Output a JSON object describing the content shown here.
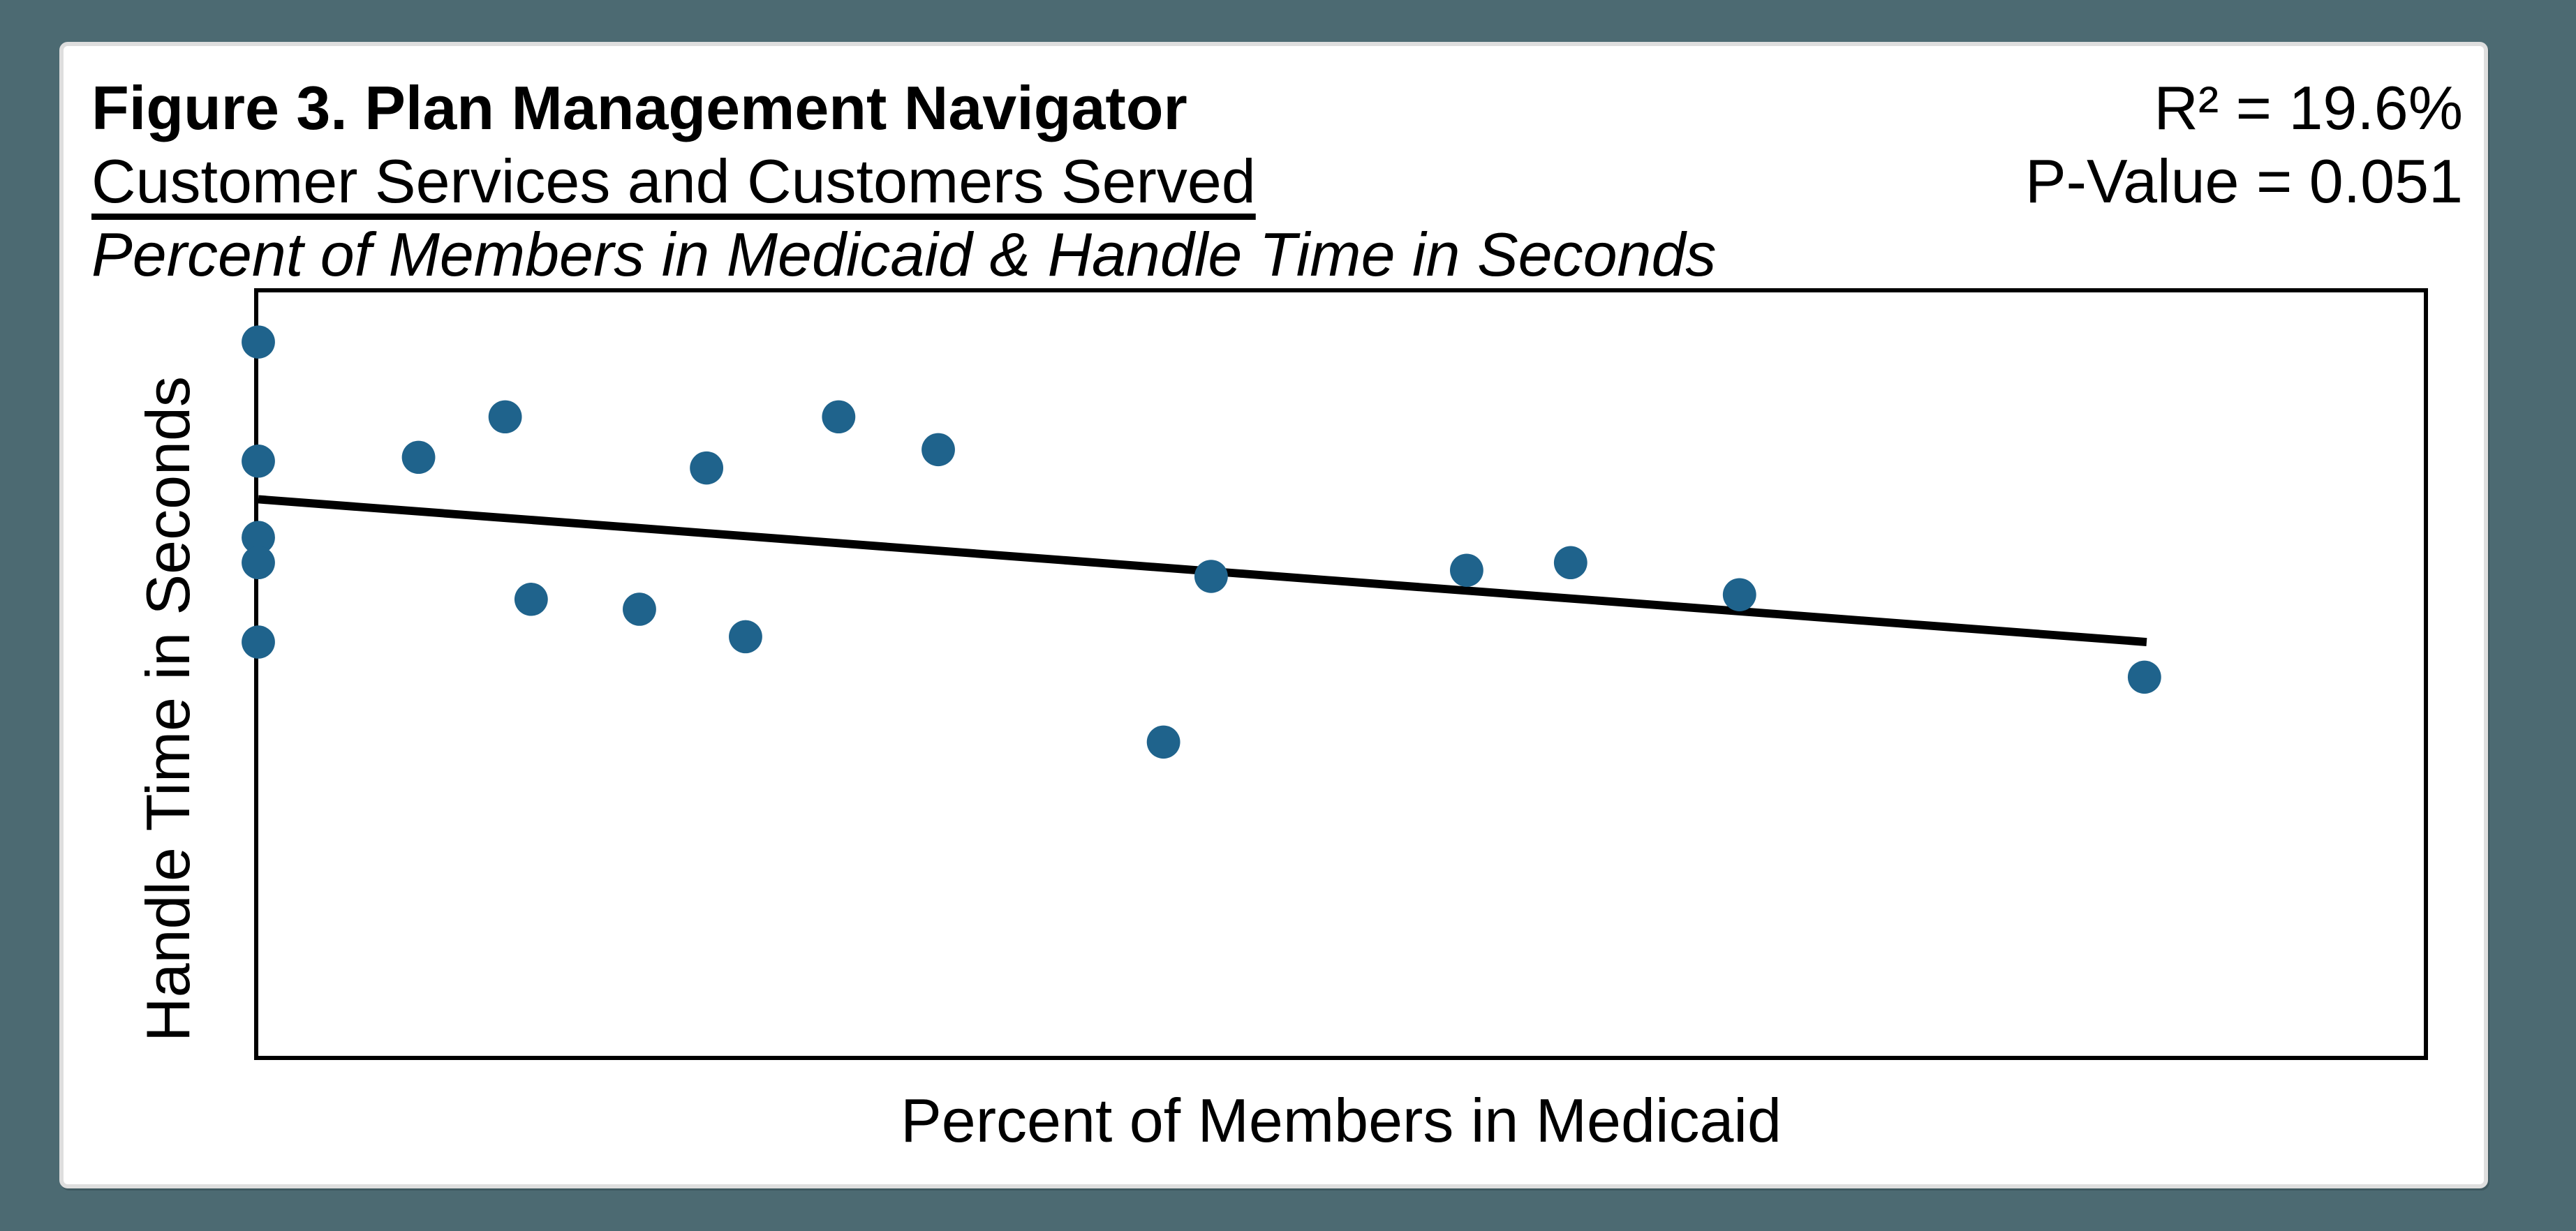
{
  "window": {
    "background_color": "#4C6A72"
  },
  "colors": {
    "card_background": "#FFFFFF",
    "card_border": "#DEDEDE",
    "plot_border": "#000000",
    "dot": "#1F638C",
    "trend_line": "#000000",
    "text": "#000000"
  },
  "header": {
    "title": "Figure 3. Plan Management Navigator",
    "subtitle": "Customer Services and Customers Served",
    "variables_line": "Percent of Members in Medicaid & Handle Time in Seconds",
    "stats": {
      "r_squared": "R² = 19.6%",
      "p_value": "P-Value = 0.051"
    }
  },
  "chart_data": {
    "type": "scatter",
    "title": "Figure 3. Plan Management Navigator",
    "subtitle": "Customer Services and Customers Served",
    "variables_line": "Percent of Members in Medicaid & Handle Time in Seconds",
    "xlabel": "Percent of Members in Medicaid",
    "ylabel": "Handle Time in Seconds",
    "annotations": [
      "R² = 19.6%",
      "P-Value = 0.051"
    ],
    "legend": null,
    "grid": false,
    "tick_labels_shown": false,
    "coordinates_note": "Axes show no tick labels; point coordinates are fractions of the plot area (x: 0 = left axis, 1 = right border; y: 0 = bottom border, 1 = top border).",
    "marker_color": "#1F638C",
    "trend_color": "#000000",
    "points": [
      {
        "x": 0.0,
        "y": 0.935
      },
      {
        "x": 0.0,
        "y": 0.779
      },
      {
        "x": 0.0,
        "y": 0.679
      },
      {
        "x": 0.0,
        "y": 0.646
      },
      {
        "x": 0.0,
        "y": 0.542
      },
      {
        "x": 0.074,
        "y": 0.784
      },
      {
        "x": 0.114,
        "y": 0.837
      },
      {
        "x": 0.126,
        "y": 0.598
      },
      {
        "x": 0.176,
        "y": 0.585
      },
      {
        "x": 0.207,
        "y": 0.77
      },
      {
        "x": 0.225,
        "y": 0.549
      },
      {
        "x": 0.268,
        "y": 0.837
      },
      {
        "x": 0.314,
        "y": 0.794
      },
      {
        "x": 0.418,
        "y": 0.411
      },
      {
        "x": 0.44,
        "y": 0.628
      },
      {
        "x": 0.558,
        "y": 0.636
      },
      {
        "x": 0.606,
        "y": 0.646
      },
      {
        "x": 0.684,
        "y": 0.604
      },
      {
        "x": 0.871,
        "y": 0.496
      }
    ],
    "trendline": {
      "x1": 0.0,
      "y1": 0.729,
      "x2": 0.872,
      "y2": 0.542
    }
  }
}
